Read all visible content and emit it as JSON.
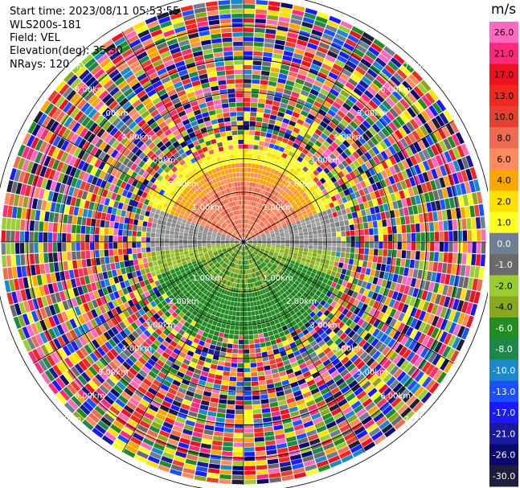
{
  "info": {
    "start_time": "Start time: 2023/08/11 05:53:55",
    "instrument": "WLS200s-181",
    "field": "Field: VEL",
    "elevation": "Elevation(deg): 35.30",
    "nrays": "NRays: 120"
  },
  "chart_data": {
    "type": "heatmap",
    "subtype": "polar PPI",
    "field": "VEL",
    "unit": "m/s",
    "nrays": 120,
    "range_rings_km": [
      "1.00km",
      "2.00km",
      "3.00km",
      "4.00km",
      "5.00km",
      "6.00km",
      "7.00km"
    ],
    "colorbar": {
      "ticks": [
        "26.0",
        "21.0",
        "17.0",
        "13.0",
        "10.0",
        "8.0",
        "6.0",
        "4.0",
        "2.0",
        "1.0",
        "0.0",
        "-1.0",
        "-2.0",
        "-4.0",
        "-6.0",
        "-8.0",
        "-10.0",
        "-13.0",
        "-17.0",
        "-21.0",
        "-26.0",
        "-30.0"
      ],
      "colors": [
        "#ff69c0",
        "#ff2a7a",
        "#ee1122",
        "#f0281e",
        "#e84030",
        "#f06c50",
        "#ff8c60",
        "#ffa500",
        "#ffe000",
        "#ffff22",
        "#6e8090",
        "#6a6a6a",
        "#9acd32",
        "#8aa81e",
        "#228b22",
        "#1e8848",
        "#1a8aca",
        "#1a50ff",
        "#1a1aff",
        "#1a1aa0",
        "#0a0a6e",
        "#1e1e3c"
      ]
    },
    "near_field_pattern": {
      "north_inner": "orange/salmon positive",
      "north_mid": "yellow",
      "east_west": "grey near zero",
      "south": "green negative"
    }
  }
}
